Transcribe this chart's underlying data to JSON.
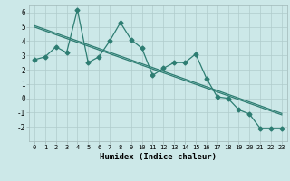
{
  "xlabel": "Humidex (Indice chaleur)",
  "x_values": [
    0,
    1,
    2,
    3,
    4,
    5,
    6,
    7,
    8,
    9,
    10,
    11,
    12,
    13,
    14,
    15,
    16,
    17,
    18,
    19,
    20,
    21,
    22,
    23
  ],
  "y_main": [
    2.7,
    2.9,
    3.6,
    3.2,
    6.2,
    2.5,
    2.9,
    4.0,
    5.3,
    4.1,
    3.5,
    1.6,
    2.1,
    2.5,
    2.5,
    3.1,
    1.4,
    0.1,
    0.0,
    -0.8,
    -1.1,
    -2.1,
    -2.1,
    -2.1
  ],
  "ylim": [
    -3,
    6.5
  ],
  "xlim": [
    -0.5,
    23.5
  ],
  "bg_color": "#cce8e8",
  "line_color": "#2d7d72",
  "grid_color": "#b0cccc",
  "spine_color": "#a0b8b8",
  "xlabel_color": "#000000"
}
